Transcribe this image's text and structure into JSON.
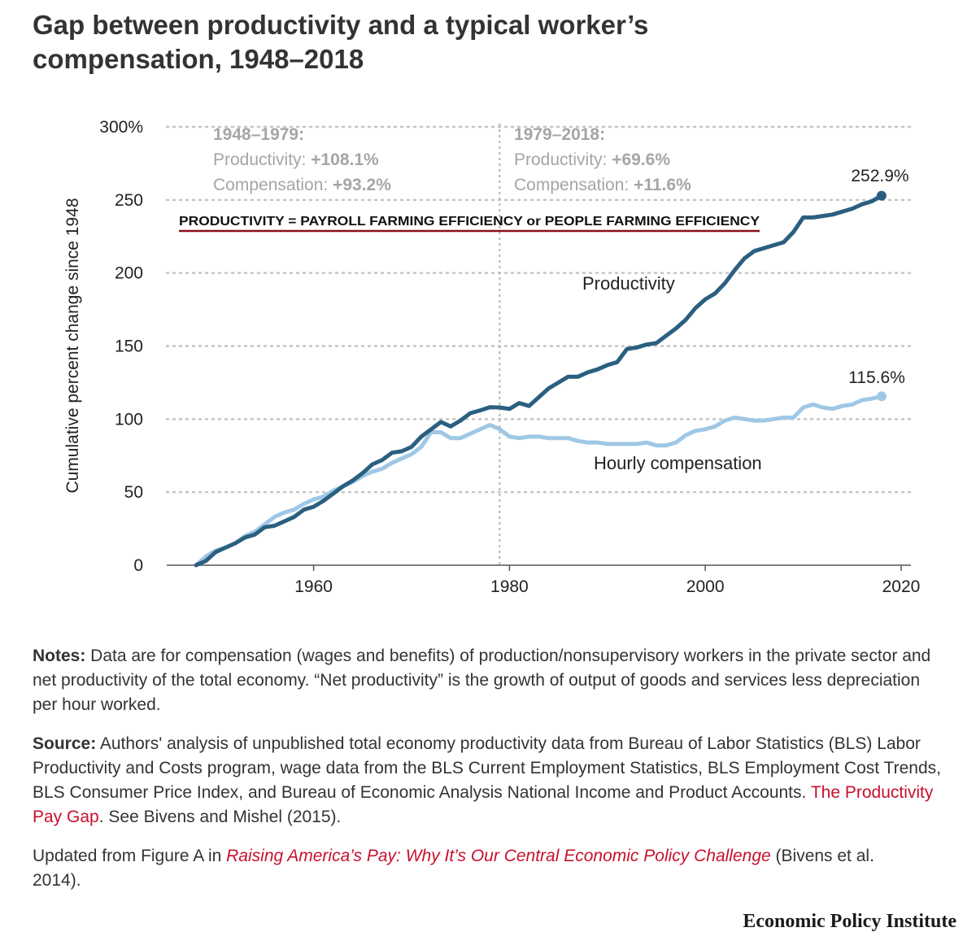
{
  "title_line1": "Gap between productivity and a typical worker’s",
  "title_line2": "compensation, 1948–2018",
  "chart_data": {
    "type": "line",
    "title": "Gap between productivity and a typical worker’s compensation, 1948–2018",
    "ylabel": "Cumulative percent change since 1948",
    "xlabel": "",
    "xlim": [
      1945,
      2021
    ],
    "ylim": [
      0,
      300
    ],
    "x_ticks": [
      1960,
      1980,
      2000,
      2020
    ],
    "y_ticks": [
      0,
      50,
      100,
      150,
      200,
      250,
      300
    ],
    "y_tick_labels": [
      "0",
      "50",
      "100",
      "150",
      "200",
      "250",
      "300%"
    ],
    "grid": "horizontal dotted",
    "divider_year": 1979,
    "series": [
      {
        "name": "Productivity",
        "color": "#2a5f80",
        "x": [
          1948,
          1949,
          1950,
          1951,
          1952,
          1953,
          1954,
          1955,
          1956,
          1957,
          1958,
          1959,
          1960,
          1961,
          1962,
          1963,
          1964,
          1965,
          1966,
          1967,
          1968,
          1969,
          1970,
          1971,
          1972,
          1973,
          1974,
          1975,
          1976,
          1977,
          1978,
          1979,
          1980,
          1981,
          1982,
          1983,
          1984,
          1985,
          1986,
          1987,
          1988,
          1989,
          1990,
          1991,
          1992,
          1993,
          1994,
          1995,
          1996,
          1997,
          1998,
          1999,
          2000,
          2001,
          2002,
          2003,
          2004,
          2005,
          2006,
          2007,
          2008,
          2009,
          2010,
          2011,
          2012,
          2013,
          2014,
          2015,
          2016,
          2017,
          2018
        ],
        "values": [
          0,
          3,
          9,
          12,
          15,
          19,
          21,
          26,
          27,
          30,
          33,
          38,
          40,
          44,
          49,
          54,
          58,
          63,
          69,
          72,
          77,
          78,
          81,
          88,
          93,
          98,
          95,
          99,
          104,
          106,
          108.1,
          108,
          107,
          111,
          109,
          115,
          121,
          125,
          129,
          129,
          132,
          134,
          137,
          139,
          148,
          149,
          151,
          152,
          157,
          162,
          168,
          176,
          182,
          186,
          193,
          202,
          210,
          215,
          217,
          219,
          221,
          228,
          238,
          238,
          239,
          240,
          242,
          244,
          247,
          249,
          252.9
        ]
      },
      {
        "name": "Hourly compensation",
        "color": "#9fc7e6",
        "x": [
          1948,
          1949,
          1950,
          1951,
          1952,
          1953,
          1954,
          1955,
          1956,
          1957,
          1958,
          1959,
          1960,
          1961,
          1962,
          1963,
          1964,
          1965,
          1966,
          1967,
          1968,
          1969,
          1970,
          1971,
          1972,
          1973,
          1974,
          1975,
          1976,
          1977,
          1978,
          1979,
          1980,
          1981,
          1982,
          1983,
          1984,
          1985,
          1986,
          1987,
          1988,
          1989,
          1990,
          1991,
          1992,
          1993,
          1994,
          1995,
          1996,
          1997,
          1998,
          1999,
          2000,
          2001,
          2002,
          2003,
          2004,
          2005,
          2006,
          2007,
          2008,
          2009,
          2010,
          2011,
          2012,
          2013,
          2014,
          2015,
          2016,
          2017,
          2018
        ],
        "values": [
          0,
          6,
          10,
          12,
          15,
          20,
          23,
          28,
          33,
          36,
          38,
          42,
          45,
          47,
          51,
          54,
          57,
          61,
          64,
          66,
          70,
          73,
          76,
          81,
          91,
          91,
          87,
          87,
          90,
          93,
          96,
          93.2,
          88,
          87,
          88,
          88,
          87,
          87,
          87,
          85,
          84,
          84,
          83,
          83,
          83,
          83,
          84,
          82,
          82,
          84,
          89,
          92,
          93,
          95,
          99,
          101,
          100,
          99,
          99,
          100,
          101,
          101,
          108,
          110,
          108,
          107,
          109,
          110,
          113,
          114,
          115.6
        ]
      }
    ],
    "series_labels": {
      "productivity": "Productivity",
      "compensation": "Hourly compensation"
    },
    "end_labels": {
      "productivity": "252.9%",
      "compensation": "115.6%"
    },
    "annotations": {
      "left": {
        "period": "1948–1979:",
        "prod_label": "Productivity:",
        "prod_value": "+108.1%",
        "comp_label": "Compensation:",
        "comp_value": "+93.2%"
      },
      "right": {
        "period": "1979–2018:",
        "prod_label": "Productivity:",
        "prod_value": "+69.6%",
        "comp_label": "Compensation:",
        "comp_value": "+11.6%"
      },
      "overlay": "PRODUCTIVITY = PAYROLL FARMING EFFICIENCY or PEOPLE FARMING EFFICIENCY"
    }
  },
  "notes": {
    "notes_label": "Notes:",
    "notes_text": " Data are for compensation (wages and benefits) of production/nonsupervisory workers in the private sector and net productivity of the total economy. “Net productivity” is the growth of output of goods and services less depreciation per hour worked.",
    "source_label": "Source:",
    "source_text": " Authors' analysis of unpublished total economy productivity data from Bureau of Labor Statistics (BLS) Labor Productivity and Costs program, wage data from the BLS Current Employment Statistics, BLS Employment Cost Trends, BLS Consumer Price Index, and Bureau of Economic Analysis National Income and Product Accounts. ",
    "source_link": "The Productivity Pay Gap",
    "source_after": ". See Bivens and Mishel (2015).",
    "updated_text": "Updated from Figure A in ",
    "updated_link": "Raising America’s Pay: Why It’s Our Central Economic Policy Challenge",
    "updated_after": " (Bivens et al. 2014)."
  },
  "brand": "Economic Policy Institute"
}
